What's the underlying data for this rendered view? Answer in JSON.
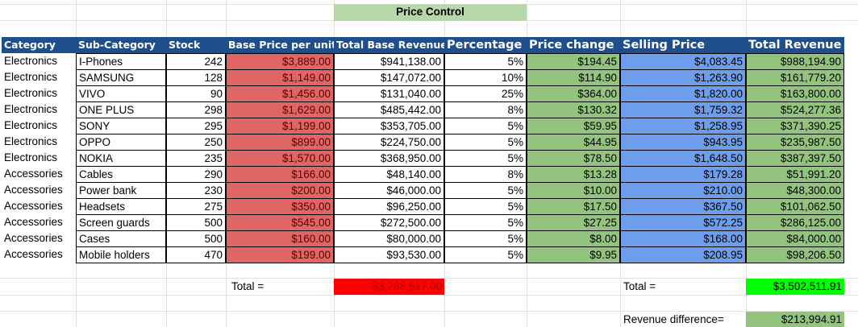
{
  "sheet": {
    "title": "Price Control",
    "headers": [
      "Category",
      "Sub-Category",
      "Stock",
      "Base Price per unit",
      "Total Base Revenue",
      "Percentage",
      "Price change",
      "Selling Price",
      "Total Revenue"
    ],
    "rows": [
      [
        "Electronics",
        "I-Phones",
        "242",
        "$3,889.00",
        "$941,138.00",
        "5%",
        "$194.45",
        "$4,083.45",
        "$988,194.90"
      ],
      [
        "Electronics",
        "SAMSUNG",
        "128",
        "$1,149.00",
        "$147,072.00",
        "10%",
        "$114.90",
        "$1,263.90",
        "$161,779.20"
      ],
      [
        "Electronics",
        "VIVO",
        "90",
        "$1,456.00",
        "$131,040.00",
        "25%",
        "$364.00",
        "$1,820.00",
        "$163,800.00"
      ],
      [
        "Electronics",
        "ONE PLUS",
        "298",
        "$1,629.00",
        "$485,442.00",
        "8%",
        "$130.32",
        "$1,759.32",
        "$524,277.36"
      ],
      [
        "Electronics",
        "SONY",
        "295",
        "$1,199.00",
        "$353,705.00",
        "5%",
        "$59.95",
        "$1,258.95",
        "$371,390.25"
      ],
      [
        "Electronics",
        "OPPO",
        "250",
        "$899.00",
        "$224,750.00",
        "5%",
        "$44.95",
        "$943.95",
        "$235,987.50"
      ],
      [
        "Electronics",
        "NOKIA",
        "235",
        "$1,570.00",
        "$368,950.00",
        "5%",
        "$78.50",
        "$1,648.50",
        "$387,397.50"
      ],
      [
        "Accessories",
        "Cables",
        "290",
        "$166.00",
        "$48,140.00",
        "8%",
        "$13.28",
        "$179.28",
        "$51,991.20"
      ],
      [
        "Accessories",
        "Power bank",
        "230",
        "$200.00",
        "$46,000.00",
        "5%",
        "$10.00",
        "$210.00",
        "$48,300.00"
      ],
      [
        "Accessories",
        "Headsets",
        "275",
        "$350.00",
        "$96,250.00",
        "5%",
        "$17.50",
        "$367.50",
        "$101,062.50"
      ],
      [
        "Accessories",
        "Screen guards",
        "500",
        "$545.00",
        "$272,500.00",
        "5%",
        "$27.25",
        "$572.25",
        "$286,125.00"
      ],
      [
        "Accessories",
        "Cases",
        "500",
        "$160.00",
        "$80,000.00",
        "5%",
        "$8.00",
        "$168.00",
        "$84,000.00"
      ],
      [
        "Accessories",
        "Mobile holders",
        "470",
        "$199.00",
        "$93,530.00",
        "5%",
        "$9.95",
        "$208.95",
        "$98,206.50"
      ]
    ],
    "summary": {
      "total_label_left": "Total =",
      "total_base": "$3,288,517.00",
      "total_label_right": "Total =",
      "total_revenue": "$3,502,511.91",
      "diff_label": "Revenue difference=",
      "diff_value": "$213,994.91"
    },
    "colors": {
      "header": "#1f4e8c",
      "base_price_fill": "#e06666",
      "price_change_fill": "#93c47d",
      "selling_price_fill": "#6d9eeb",
      "total_base_fill": "#ff0000",
      "total_revenue_fill": "#00ff00",
      "diff_fill": "#93c47d",
      "title_fill": "#b6d7a8"
    }
  }
}
